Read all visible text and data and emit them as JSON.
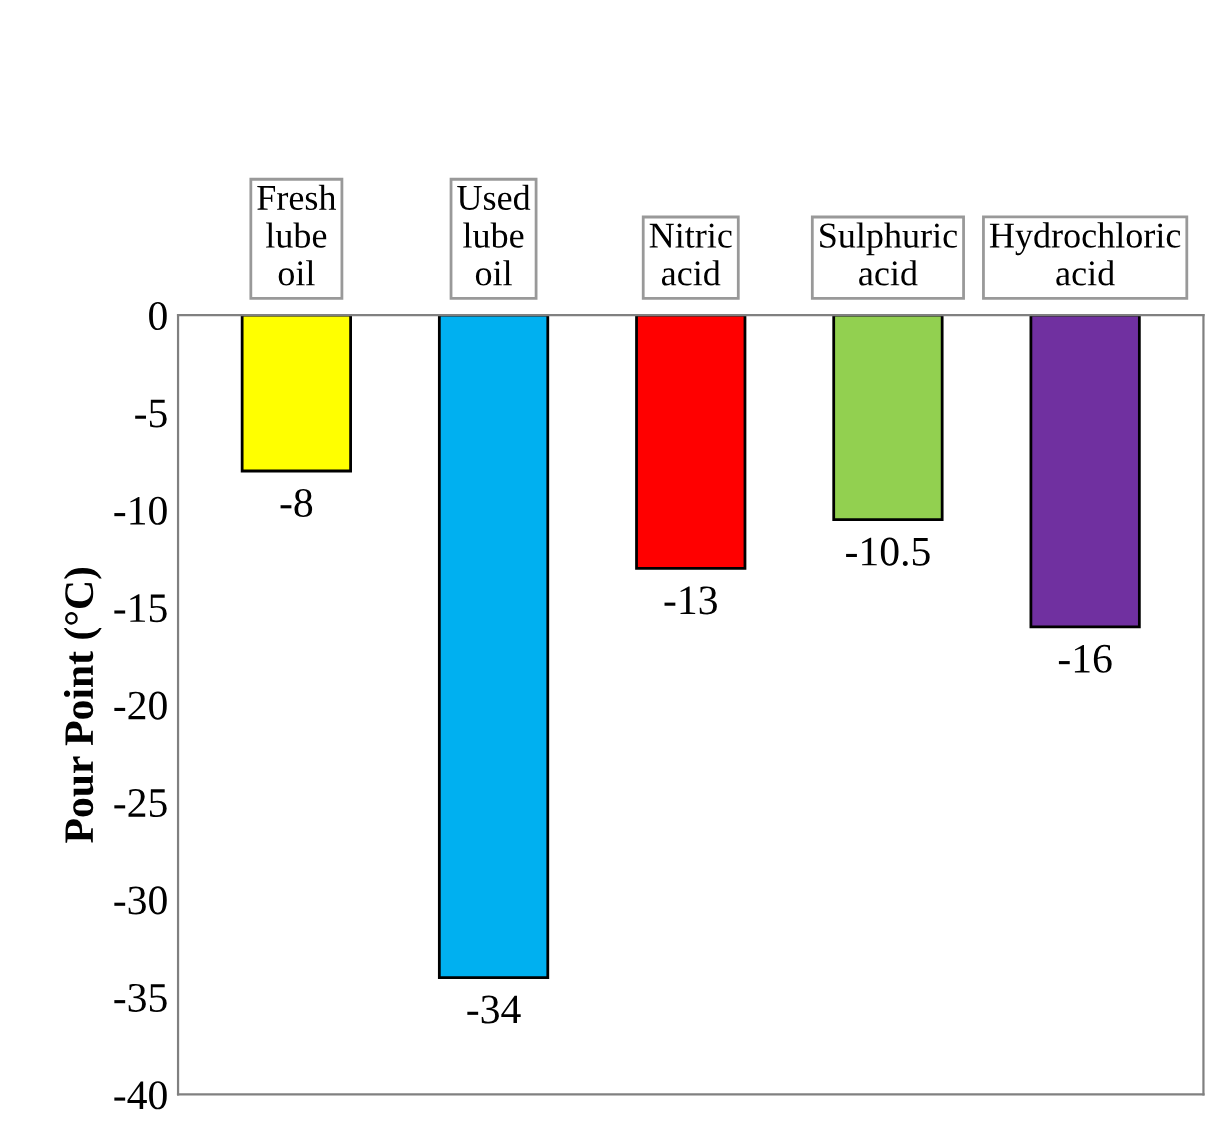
{
  "chart_data": {
    "type": "bar",
    "ylabel": "Pour Point (°C)",
    "categories": [
      "Fresh\nlube\noil",
      "Used\nlube\noil",
      "Nitric\nacid",
      "Sulphuric\nacid",
      "Hydrochloric\nacid"
    ],
    "values": [
      -8,
      -34,
      -13,
      -10.5,
      -16
    ],
    "colors": [
      "#ffff00",
      "#00b0f0",
      "#ff0000",
      "#92d050",
      "#7030a0"
    ],
    "ylim": [
      -40,
      0
    ],
    "yticks": [
      -40,
      -35,
      -30,
      -25,
      -20,
      -15,
      -10,
      -5,
      0
    ],
    "data_labels": true,
    "grid": false,
    "legend": false
  }
}
